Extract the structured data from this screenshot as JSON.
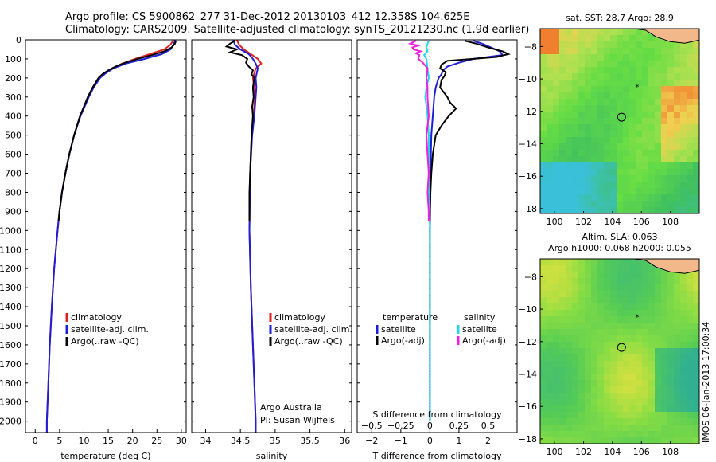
{
  "header": {
    "line1": "Argo profile: CS 5900862_277 31-Dec-2012 20130103_412 12.358S 104.625E",
    "line2": "Climatology: CARS2009. Satellite-adjusted climatology: synTS_20121230.nc (1.9d earlier)"
  },
  "stamp": "IMOS 06-Jan-2013 17:00:34",
  "colors": {
    "climatology": "#e02020",
    "satellite": "#1e1ed8",
    "argo": "#000000",
    "salinity_sat": "#22d8e6",
    "salinity_argo": "#ee1fe0"
  },
  "chart_data": [
    {
      "type": "line",
      "panel": "temperature",
      "xlabel": "temperature (deg C)",
      "ylabel": "",
      "xlim": [
        -2,
        31
      ],
      "ylim": [
        2060,
        0
      ],
      "xticks": [
        0,
        5,
        10,
        15,
        20,
        25,
        30
      ],
      "yticks": [
        0,
        100,
        200,
        300,
        400,
        500,
        600,
        700,
        800,
        900,
        1000,
        1100,
        1200,
        1300,
        1400,
        1500,
        1600,
        1700,
        1800,
        1900,
        2000
      ],
      "legend": [
        "climatology",
        "satellite-adj. clim.",
        "Argo(..raw -QC)"
      ],
      "series": [
        {
          "name": "climatology",
          "color_key": "climatology",
          "depth": [
            0,
            25,
            50,
            75,
            100,
            125,
            150,
            175,
            200,
            250,
            300,
            400,
            500,
            600,
            700,
            800,
            900,
            1000,
            1200,
            1400,
            1600,
            1800,
            2000,
            2060
          ],
          "values": [
            28.4,
            27.8,
            26.5,
            23.5,
            20.5,
            17.8,
            15.8,
            14.2,
            13.0,
            11.8,
            10.8,
            9.2,
            8.0,
            7.0,
            6.2,
            5.5,
            5.0,
            4.6,
            3.9,
            3.4,
            3.0,
            2.7,
            2.4,
            2.4
          ]
        },
        {
          "name": "satellite-adj. clim.",
          "color_key": "satellite",
          "depth": [
            0,
            25,
            50,
            75,
            100,
            125,
            150,
            175,
            200,
            250,
            300,
            400,
            500,
            600,
            700,
            800,
            900,
            1000,
            1200,
            1400,
            1600,
            1800,
            2000,
            2060
          ],
          "values": [
            28.8,
            28.4,
            27.8,
            26.0,
            22.5,
            18.5,
            16.0,
            14.5,
            13.3,
            12.0,
            11.0,
            9.3,
            8.0,
            7.0,
            6.2,
            5.5,
            5.0,
            4.6,
            3.9,
            3.4,
            3.0,
            2.7,
            2.4,
            2.4
          ]
        },
        {
          "name": "Argo(..raw -QC)",
          "color_key": "argo",
          "depth": [
            5,
            20,
            40,
            60,
            80,
            100,
            120,
            140,
            160,
            180,
            200,
            250,
            300,
            400,
            500,
            600,
            700,
            800,
            900,
            950
          ],
          "values": [
            28.9,
            28.7,
            28.0,
            26.5,
            24.0,
            21.0,
            18.5,
            16.5,
            15.0,
            13.8,
            13.0,
            11.8,
            10.8,
            9.2,
            8.0,
            7.0,
            6.2,
            5.5,
            5.0,
            4.8
          ]
        }
      ]
    },
    {
      "type": "line",
      "panel": "salinity",
      "xlabel": "salinity",
      "ylabel": "",
      "xlim": [
        33.8,
        36.1
      ],
      "ylim": [
        2060,
        0
      ],
      "xticks": [
        34,
        34.5,
        35,
        35.5,
        36
      ],
      "legend": [
        "climatology",
        "satellite-adj. clim.",
        "Argo(..raw -QC)"
      ],
      "annotations": [
        "Argo Australia",
        "PI: Susan Wijffels"
      ],
      "series": [
        {
          "name": "climatology",
          "color_key": "climatology",
          "depth": [
            0,
            25,
            50,
            75,
            100,
            125,
            150,
            200,
            250,
            300,
            400,
            500,
            700,
            1000,
            1300,
            1600,
            1800,
            2000,
            2060
          ],
          "values": [
            34.45,
            34.48,
            34.55,
            34.65,
            34.75,
            34.8,
            34.72,
            34.68,
            34.7,
            34.71,
            34.69,
            34.66,
            34.64,
            34.63,
            34.65,
            34.68,
            34.7,
            34.72,
            34.72
          ]
        },
        {
          "name": "satellite-adj. clim.",
          "color_key": "satellite",
          "depth": [
            0,
            25,
            50,
            75,
            100,
            125,
            150,
            200,
            250,
            300,
            400,
            500,
            700,
            1000,
            1300,
            1600,
            1800,
            2000,
            2060
          ],
          "values": [
            34.4,
            34.42,
            34.5,
            34.62,
            34.68,
            34.72,
            34.75,
            34.72,
            34.73,
            34.72,
            34.7,
            34.67,
            34.64,
            34.63,
            34.65,
            34.68,
            34.7,
            34.72,
            34.72
          ]
        },
        {
          "name": "Argo(..raw -QC)",
          "color_key": "argo",
          "depth": [
            5,
            20,
            35,
            50,
            65,
            80,
            100,
            120,
            140,
            160,
            180,
            200,
            250,
            300,
            350,
            400,
            500,
            600,
            700,
            800,
            900,
            950
          ],
          "values": [
            34.42,
            34.35,
            34.3,
            34.45,
            34.35,
            34.52,
            34.6,
            34.58,
            34.62,
            34.68,
            34.66,
            34.7,
            34.68,
            34.69,
            34.67,
            34.68,
            34.66,
            34.65,
            34.64,
            34.63,
            34.63,
            34.63
          ]
        }
      ]
    },
    {
      "type": "line",
      "panel": "difference",
      "xlabel": "T difference from climatology",
      "top_xlabel": "S difference from climatology",
      "ylabel": "",
      "xlim": [
        -2.5,
        3
      ],
      "ylim": [
        2060,
        0
      ],
      "xticks": [
        -2,
        -1,
        0,
        1,
        2
      ],
      "top_xticks": [
        -0.5,
        -0.25,
        0,
        0.25,
        0.5
      ],
      "legend_titles": [
        "temperature",
        "salinity"
      ],
      "legend": [
        "satellite",
        "Argo(-adj)",
        "satellite",
        "Argo(-adj)"
      ],
      "series": [
        {
          "name": "temperature satellite",
          "color_key": "satellite",
          "depth": [
            5,
            20,
            40,
            60,
            80,
            100,
            120,
            140,
            160,
            180,
            200,
            250,
            300,
            400,
            500,
            700,
            1000,
            1500,
            2000
          ],
          "values": [
            1.5,
            1.8,
            2.1,
            2.4,
            2.5,
            1.5,
            1.0,
            0.6,
            0.45,
            0.4,
            0.3,
            0.2,
            0.15,
            0.1,
            0.05,
            0.02,
            0.0,
            0.0,
            0.0
          ]
        },
        {
          "name": "temperature Argo(-adj)",
          "color_key": "argo",
          "depth": [
            5,
            20,
            40,
            60,
            75,
            90,
            100,
            110,
            130,
            150,
            170,
            190,
            210,
            250,
            300,
            330,
            360,
            400,
            450,
            500,
            600,
            700,
            800,
            900,
            950
          ],
          "values": [
            1.2,
            1.6,
            2.0,
            2.5,
            2.7,
            2.3,
            1.5,
            0.6,
            0.4,
            0.35,
            0.55,
            0.5,
            0.4,
            0.35,
            0.6,
            0.7,
            0.9,
            0.65,
            0.4,
            0.2,
            0.1,
            0.05,
            0.02,
            0.0,
            0.0
          ]
        },
        {
          "name": "salinity satellite",
          "color_key": "salinity_sat",
          "depth": [
            5,
            20,
            40,
            60,
            80,
            100,
            150,
            200,
            250,
            300,
            350,
            400,
            500,
            700,
            1000,
            1500,
            2000
          ],
          "values": [
            -0.01,
            -0.02,
            -0.03,
            -0.02,
            -0.05,
            -0.03,
            -0.02,
            -0.01,
            -0.03,
            -0.04,
            -0.03,
            -0.02,
            -0.01,
            -0.01,
            0.0,
            0.0,
            0.0
          ]
        },
        {
          "name": "salinity Argo(-adj)",
          "color_key": "salinity_argo",
          "depth": [
            5,
            20,
            30,
            40,
            50,
            60,
            70,
            80,
            100,
            120,
            150,
            200,
            250,
            300,
            400,
            500,
            600,
            700,
            800,
            900,
            950
          ],
          "values": [
            -0.12,
            -0.17,
            -0.1,
            -0.15,
            -0.14,
            -0.08,
            -0.12,
            -0.09,
            -0.1,
            -0.06,
            -0.02,
            -0.03,
            -0.02,
            -0.02,
            -0.01,
            -0.03,
            -0.02,
            -0.01,
            -0.02,
            -0.01,
            -0.01
          ]
        }
      ]
    },
    {
      "type": "heatmap",
      "panel": "sst-map",
      "title": "sat. SST: 28.7 Argo: 28.9",
      "xticks": [
        100,
        102,
        104,
        106,
        108
      ],
      "yticks": [
        -8,
        -10,
        -12,
        -14,
        -16,
        -18
      ],
      "xlim": [
        99,
        110
      ],
      "ylim": [
        -18.3,
        -6.9
      ],
      "argo_position": {
        "lon": 104.625,
        "lat": -12.358
      }
    },
    {
      "type": "heatmap",
      "panel": "sla-map",
      "title": "Altim. SLA: 0.063",
      "subtitle": "Argo h1000: 0.068 h2000: 0.055",
      "xticks": [
        100,
        102,
        104,
        106,
        108
      ],
      "yticks": [
        -8,
        -10,
        -12,
        -14,
        -16,
        -18
      ],
      "xlim": [
        99,
        110
      ],
      "ylim": [
        -18.3,
        -6.9
      ],
      "argo_position": {
        "lon": 104.625,
        "lat": -12.358
      }
    }
  ]
}
